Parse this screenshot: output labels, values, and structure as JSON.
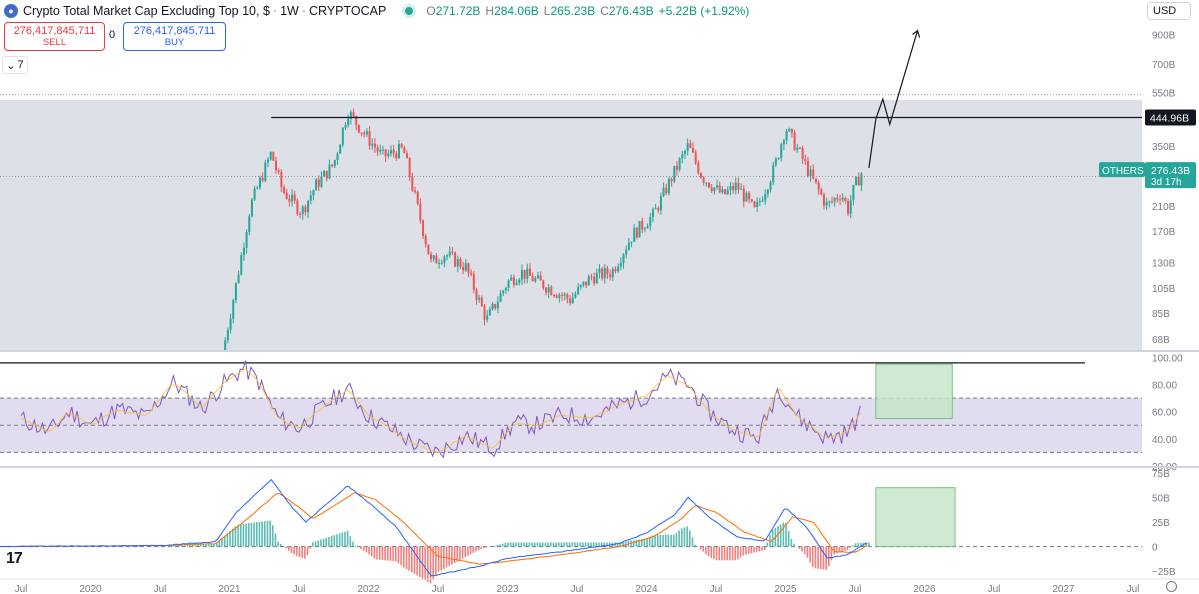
{
  "header": {
    "title": "Crypto Total Market Cap Excluding Top 10, $",
    "interval": "1W",
    "exchange": "CRYPTOCAP",
    "ohlc": [
      {
        "k": "O",
        "v": "271.72B"
      },
      {
        "k": "H",
        "v": "284.06B"
      },
      {
        "k": "L",
        "v": "265.23B"
      },
      {
        "k": "C",
        "v": "276.43B"
      },
      {
        "k": "",
        "v": "+5.22B (+1.92%)"
      }
    ]
  },
  "trade": {
    "sell_price": "276,417,845,711",
    "sell_label": "SELL",
    "spread": "0",
    "buy_price": "276,417,845,711",
    "buy_label": "BUY"
  },
  "collapse_count": "7",
  "currency": "USD",
  "chart_data": [
    {
      "type": "candlestick",
      "title": "Crypto Total Market Cap Excluding Top 10, $",
      "scale": "log",
      "y_ticks": [
        "900B",
        "700B",
        "550B",
        "450B",
        "350B",
        "270B",
        "210B",
        "170B",
        "130B",
        "105B",
        "85B",
        "68B"
      ],
      "y_tick_values": [
        900,
        700,
        550,
        450,
        350,
        270,
        210,
        170,
        130,
        105,
        85,
        68
      ],
      "ylim": [
        62,
        1000
      ],
      "price_path": [
        [
          2020.95,
          60
        ],
        [
          2021.05,
          110
        ],
        [
          2021.15,
          210
        ],
        [
          2021.3,
          330
        ],
        [
          2021.38,
          240
        ],
        [
          2021.52,
          200
        ],
        [
          2021.62,
          250
        ],
        [
          2021.75,
          300
        ],
        [
          2021.85,
          470
        ],
        [
          2021.95,
          400
        ],
        [
          2022.1,
          320
        ],
        [
          2022.25,
          340
        ],
        [
          2022.35,
          210
        ],
        [
          2022.45,
          130
        ],
        [
          2022.55,
          140
        ],
        [
          2022.7,
          125
        ],
        [
          2022.85,
          80
        ],
        [
          2023.0,
          110
        ],
        [
          2023.1,
          120
        ],
        [
          2023.3,
          105
        ],
        [
          2023.45,
          95
        ],
        [
          2023.6,
          115
        ],
        [
          2023.75,
          120
        ],
        [
          2023.9,
          165
        ],
        [
          2024.05,
          195
        ],
        [
          2024.2,
          280
        ],
        [
          2024.3,
          350
        ],
        [
          2024.4,
          270
        ],
        [
          2024.55,
          230
        ],
        [
          2024.65,
          250
        ],
        [
          2024.78,
          200
        ],
        [
          2024.92,
          290
        ],
        [
          2025.0,
          410
        ],
        [
          2025.1,
          330
        ],
        [
          2025.2,
          260
        ],
        [
          2025.3,
          210
        ],
        [
          2025.4,
          235
        ],
        [
          2025.45,
          205
        ],
        [
          2025.5,
          250
        ],
        [
          2025.55,
          280
        ]
      ],
      "resistance_line": 445,
      "resistance_label": "444.96B",
      "current_price_label": "276.43B",
      "symbol_label": "OTHERS",
      "countdown_label": "3d 17h",
      "projection_path": [
        [
          2025.6,
          290
        ],
        [
          2025.65,
          440
        ],
        [
          2025.7,
          520
        ],
        [
          2025.75,
          420
        ],
        [
          2025.95,
          930
        ]
      ]
    },
    {
      "type": "line",
      "indicator": "RSI",
      "y_ticks": [
        "100.00",
        "80.00",
        "60.00",
        "40.00",
        "20.00"
      ],
      "y_tick_values": [
        100,
        80,
        60,
        40,
        20
      ],
      "levels": [
        70,
        30,
        50
      ],
      "ylim": [
        20,
        104
      ],
      "series": [
        {
          "values": [
            [
              2019.5,
              55
            ],
            [
              2019.7,
              45
            ],
            [
              2019.85,
              60
            ],
            [
              2020.0,
              50
            ],
            [
              2020.2,
              62
            ],
            [
              2020.4,
              56
            ],
            [
              2020.6,
              82
            ],
            [
              2020.8,
              62
            ],
            [
              2020.95,
              80
            ],
            [
              2021.1,
              92
            ],
            [
              2021.2,
              84
            ],
            [
              2021.35,
              55
            ],
            [
              2021.5,
              48
            ],
            [
              2021.7,
              66
            ],
            [
              2021.85,
              77
            ],
            [
              2022.0,
              57
            ],
            [
              2022.15,
              48
            ],
            [
              2022.35,
              35
            ],
            [
              2022.5,
              30
            ],
            [
              2022.7,
              42
            ],
            [
              2022.9,
              33
            ],
            [
              2023.05,
              52
            ],
            [
              2023.2,
              50
            ],
            [
              2023.4,
              58
            ],
            [
              2023.6,
              55
            ],
            [
              2023.8,
              65
            ],
            [
              2024.0,
              72
            ],
            [
              2024.15,
              86
            ],
            [
              2024.3,
              80
            ],
            [
              2024.45,
              60
            ],
            [
              2024.6,
              48
            ],
            [
              2024.8,
              40
            ],
            [
              2024.95,
              78
            ],
            [
              2025.1,
              55
            ],
            [
              2025.3,
              40
            ],
            [
              2025.45,
              45
            ],
            [
              2025.55,
              60
            ]
          ]
        }
      ],
      "highlight_box": {
        "x": [
          2025.65,
          2026.2
        ],
        "y": [
          55,
          95
        ]
      }
    },
    {
      "type": "line",
      "indicator": "MACD",
      "y_ticks": [
        "75B",
        "50B",
        "25B",
        "0",
        "−25B"
      ],
      "y_tick_values": [
        75,
        50,
        25,
        0,
        -25
      ],
      "ylim": [
        -32,
        80
      ],
      "series": [
        {
          "values": [
            [
              2019.3,
              0
            ],
            [
              2020.5,
              1
            ],
            [
              2020.9,
              5
            ],
            [
              2021.05,
              35
            ],
            [
              2021.3,
              68
            ],
            [
              2021.45,
              40
            ],
            [
              2021.55,
              25
            ],
            [
              2021.85,
              62
            ],
            [
              2022.0,
              45
            ],
            [
              2022.2,
              20
            ],
            [
              2022.45,
              -30
            ],
            [
              2022.8,
              -20
            ],
            [
              2023.0,
              -12
            ],
            [
              2023.4,
              -5
            ],
            [
              2023.8,
              3
            ],
            [
              2024.0,
              14
            ],
            [
              2024.2,
              32
            ],
            [
              2024.3,
              50
            ],
            [
              2024.45,
              30
            ],
            [
              2024.65,
              10
            ],
            [
              2024.85,
              5
            ],
            [
              2025.0,
              40
            ],
            [
              2025.15,
              20
            ],
            [
              2025.3,
              -12
            ],
            [
              2025.45,
              -8
            ],
            [
              2025.6,
              5
            ]
          ]
        },
        {
          "values": [
            [
              2019.3,
              0
            ],
            [
              2020.5,
              1
            ],
            [
              2020.9,
              3
            ],
            [
              2021.1,
              25
            ],
            [
              2021.35,
              55
            ],
            [
              2021.5,
              40
            ],
            [
              2021.6,
              28
            ],
            [
              2021.9,
              55
            ],
            [
              2022.05,
              48
            ],
            [
              2022.25,
              25
            ],
            [
              2022.5,
              -10
            ],
            [
              2022.8,
              -18
            ],
            [
              2023.0,
              -15
            ],
            [
              2023.4,
              -8
            ],
            [
              2023.8,
              0
            ],
            [
              2024.05,
              10
            ],
            [
              2024.25,
              28
            ],
            [
              2024.35,
              42
            ],
            [
              2024.5,
              35
            ],
            [
              2024.7,
              15
            ],
            [
              2024.9,
              5
            ],
            [
              2025.05,
              30
            ],
            [
              2025.2,
              25
            ],
            [
              2025.35,
              -5
            ],
            [
              2025.5,
              -6
            ],
            [
              2025.6,
              2
            ]
          ]
        }
      ],
      "highlight_box": {
        "x": [
          2025.65,
          2026.22
        ],
        "y": [
          0,
          60
        ]
      }
    }
  ],
  "x_axis": {
    "labels": [
      "Jul",
      "2020",
      "Jul",
      "2021",
      "Jul",
      "2022",
      "Jul",
      "2023",
      "Jul",
      "2024",
      "Jul",
      "2025",
      "Jul",
      "2026",
      "Jul",
      "2027",
      "Jul"
    ],
    "values": [
      2019.5,
      2020,
      2020.5,
      2021,
      2021.5,
      2022,
      2022.5,
      2023,
      2023.5,
      2024,
      2024.5,
      2025,
      2025.5,
      2026,
      2026.5,
      2027,
      2027.5
    ]
  },
  "colors": {
    "up": "#26a69a",
    "down": "#ef5350",
    "rsi": "#7e57c2",
    "macd": "#2962ff",
    "signal": "#ff6d00",
    "box": "#a5d6a7"
  }
}
